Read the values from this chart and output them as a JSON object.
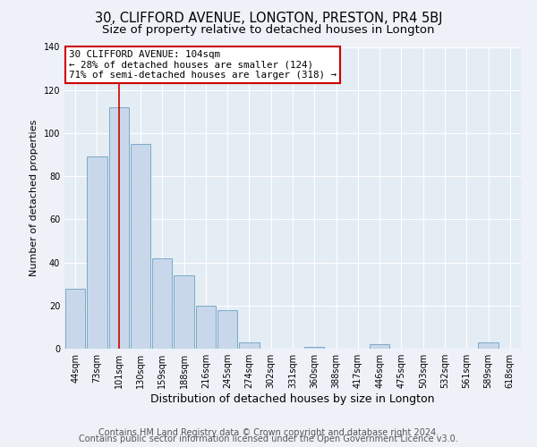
{
  "title": "30, CLIFFORD AVENUE, LONGTON, PRESTON, PR4 5BJ",
  "subtitle": "Size of property relative to detached houses in Longton",
  "xlabel": "Distribution of detached houses by size in Longton",
  "ylabel": "Number of detached properties",
  "bar_labels": [
    "44sqm",
    "73sqm",
    "101sqm",
    "130sqm",
    "159sqm",
    "188sqm",
    "216sqm",
    "245sqm",
    "274sqm",
    "302sqm",
    "331sqm",
    "360sqm",
    "388sqm",
    "417sqm",
    "446sqm",
    "475sqm",
    "503sqm",
    "532sqm",
    "561sqm",
    "589sqm",
    "618sqm"
  ],
  "bar_heights": [
    28,
    89,
    112,
    95,
    42,
    34,
    20,
    18,
    3,
    0,
    0,
    1,
    0,
    0,
    2,
    0,
    0,
    0,
    0,
    3,
    0
  ],
  "bar_color": "#c8d8ea",
  "bar_edgecolor": "#7aaac8",
  "bar_linewidth": 0.7,
  "ylim": [
    0,
    140
  ],
  "yticks": [
    0,
    20,
    40,
    60,
    80,
    100,
    120,
    140
  ],
  "vline_x": 2,
  "vline_color": "#cc0000",
  "annotation_title": "30 CLIFFORD AVENUE: 104sqm",
  "annotation_line1": "← 28% of detached houses are smaller (124)",
  "annotation_line2": "71% of semi-detached houses are larger (318) →",
  "annotation_box_color": "#ffffff",
  "annotation_box_edgecolor": "#cc0000",
  "footer1": "Contains HM Land Registry data © Crown copyright and database right 2024.",
  "footer2": "Contains public sector information licensed under the Open Government Licence v3.0.",
  "background_color": "#eef2f8",
  "plot_background_color": "#e4ecf4",
  "grid_color": "#ffffff",
  "title_fontsize": 10.5,
  "subtitle_fontsize": 9.5,
  "footer_fontsize": 7,
  "tick_fontsize": 7,
  "ylabel_fontsize": 8,
  "xlabel_fontsize": 9
}
